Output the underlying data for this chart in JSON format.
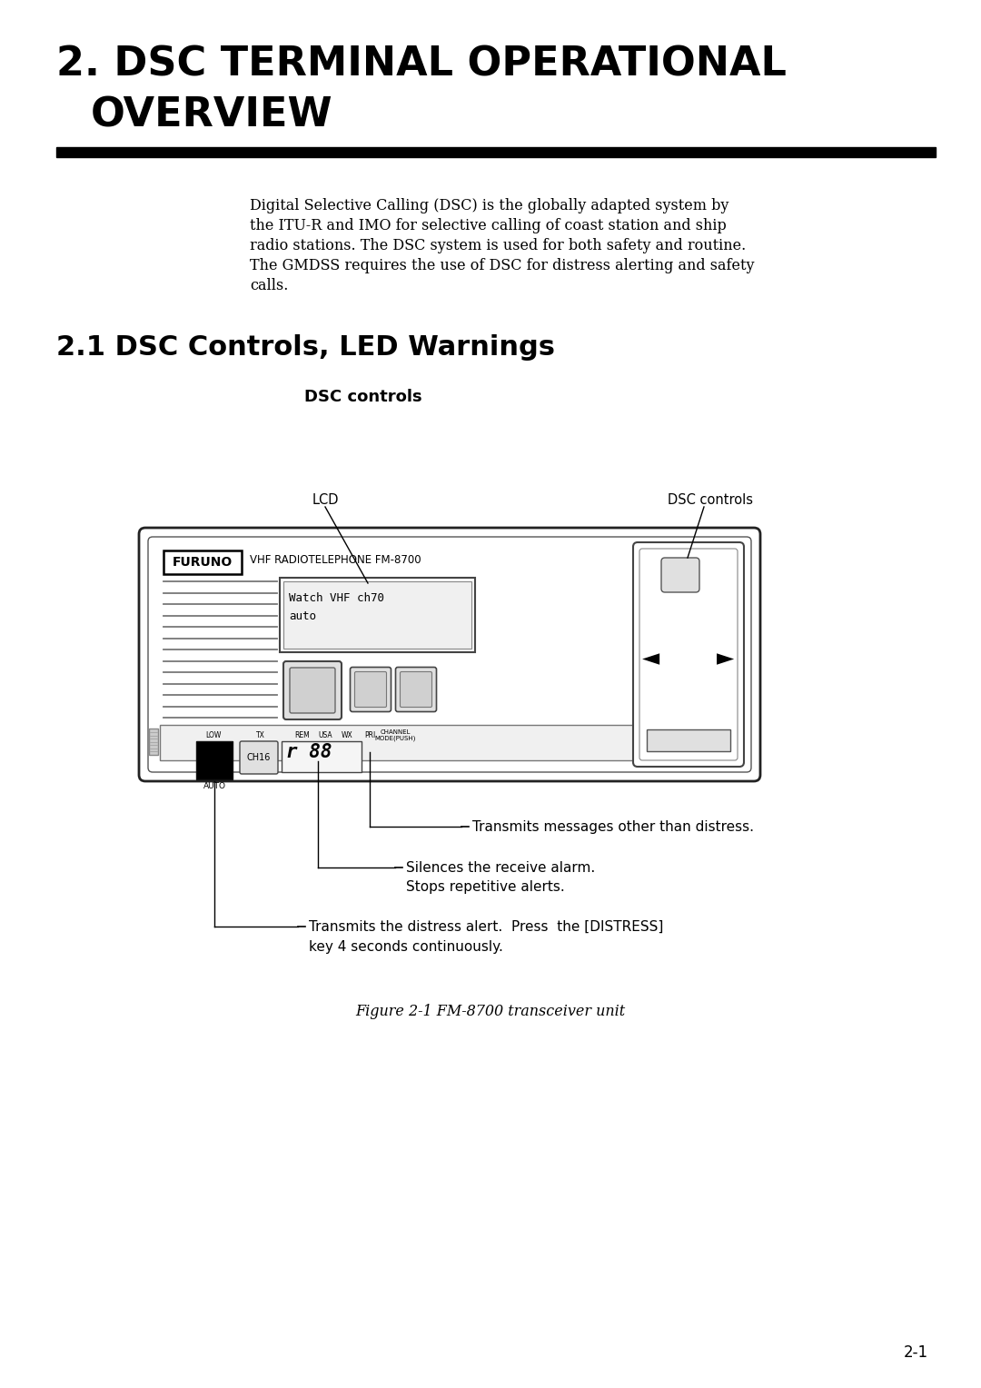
{
  "title_line1": "2. DSC TERMINAL OPERATIONAL",
  "title_line2": "OVERVIEW",
  "section_title": "2.1 DSC Controls, LED Warnings",
  "subsection_title": "DSC controls",
  "body_lines": [
    "Digital Selective Calling (DSC) is the globally adapted system by",
    "the ITU-R and IMO for selective calling of coast station and ship",
    "radio stations. The DSC system is used for both safety and routine.",
    "The GMDSS requires the use of DSC for distress alerting and safety",
    "calls."
  ],
  "label_lcd": "LCD",
  "label_dsc_controls": "DSC controls",
  "annotation1": "Transmits messages other than distress.",
  "annotation2_line1": "Silences the receive alarm.",
  "annotation2_line2": "Stops repetitive alerts.",
  "annotation3_line1": "Transmits the distress alert.  Press  the [DISTRESS]",
  "annotation3_line2": "key 4 seconds continuously.",
  "figure_caption": "Figure 2-1 FM-8700 transceiver unit",
  "page_number": "2-1",
  "bg_color": "#ffffff",
  "text_color": "#000000"
}
